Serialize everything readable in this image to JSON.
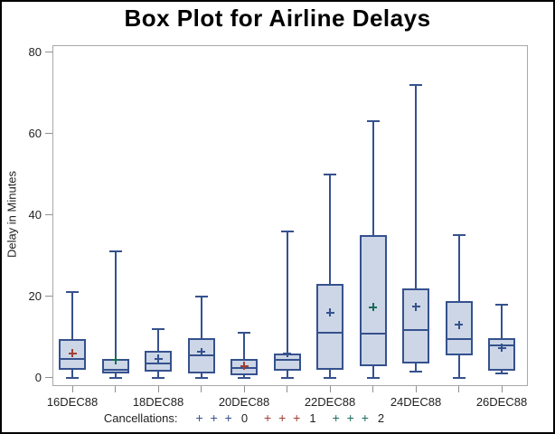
{
  "chart_data": {
    "type": "boxplot",
    "title": "Box Plot for Airline Delays",
    "xlabel": "",
    "ylabel": "Delay in Minutes",
    "ylim": [
      0,
      80
    ],
    "y_ticks": [
      0,
      20,
      40,
      60,
      80
    ],
    "x_tick_labels_shown": [
      "16DEC88",
      "18DEC88",
      "20DEC88",
      "22DEC88",
      "24DEC88",
      "26DEC88"
    ],
    "grid": false,
    "legend_position": "bottom",
    "groups": [
      {
        "label": "16DEC88",
        "min": 0,
        "q1": 2,
        "median": 4.5,
        "mean": 6,
        "q3": 9.5,
        "max": 21,
        "cancellations": 1
      },
      {
        "label": "",
        "min": 0,
        "q1": 1,
        "median": 2,
        "mean": 4.3,
        "q3": 4.6,
        "max": 31,
        "cancellations": 2
      },
      {
        "label": "18DEC88",
        "min": 0,
        "q1": 1.5,
        "median": 3.5,
        "mean": 4.6,
        "q3": 6.5,
        "max": 12,
        "cancellations": 0
      },
      {
        "label": "",
        "min": 0,
        "q1": 1,
        "median": 5.5,
        "mean": 6.3,
        "q3": 9.7,
        "max": 20,
        "cancellations": 0
      },
      {
        "label": "20DEC88",
        "min": 0,
        "q1": 0.5,
        "median": 2.3,
        "mean": 2.8,
        "q3": 4.5,
        "max": 11,
        "cancellations": 1
      },
      {
        "label": "",
        "min": 0,
        "q1": 1.7,
        "median": 4.3,
        "mean": 6,
        "q3": 5.8,
        "max": 36,
        "cancellations": 0
      },
      {
        "label": "22DEC88",
        "min": 0,
        "q1": 2,
        "median": 11,
        "mean": 16,
        "q3": 23,
        "max": 50,
        "cancellations": 0
      },
      {
        "label": "",
        "min": 0,
        "q1": 2.7,
        "median": 10.8,
        "mean": 17.3,
        "q3": 35,
        "max": 63,
        "cancellations": 2
      },
      {
        "label": "24DEC88",
        "min": 1.5,
        "q1": 3.5,
        "median": 11.7,
        "mean": 17.4,
        "q3": 22,
        "max": 72,
        "cancellations": 0
      },
      {
        "label": "",
        "min": 0,
        "q1": 5.5,
        "median": 9.4,
        "mean": 13,
        "q3": 18.7,
        "max": 35,
        "cancellations": 0
      },
      {
        "label": "26DEC88",
        "min": 1,
        "q1": 1.7,
        "median": 7.8,
        "mean": 7.3,
        "q3": 9.7,
        "max": 18,
        "cancellations": 0
      }
    ]
  },
  "legend": {
    "label": "Cancellations:",
    "entries": [
      {
        "symbol": "+ + +",
        "value": "0",
        "color_key": "cancellation_0"
      },
      {
        "symbol": "+ + +",
        "value": "1",
        "color_key": "cancellation_1"
      },
      {
        "symbol": "+ + +",
        "value": "2",
        "color_key": "cancellation_2"
      }
    ]
  },
  "colors": {
    "box_stroke": "#35518e",
    "box_fill": "#ccd6e6",
    "cancellation_0": "#35518e",
    "cancellation_1": "#a13f34",
    "cancellation_2": "#1c6b5c",
    "frame": "#a8a8a8",
    "tick": "#8f8f8f",
    "text": "#222222",
    "title_text": "#000000"
  }
}
